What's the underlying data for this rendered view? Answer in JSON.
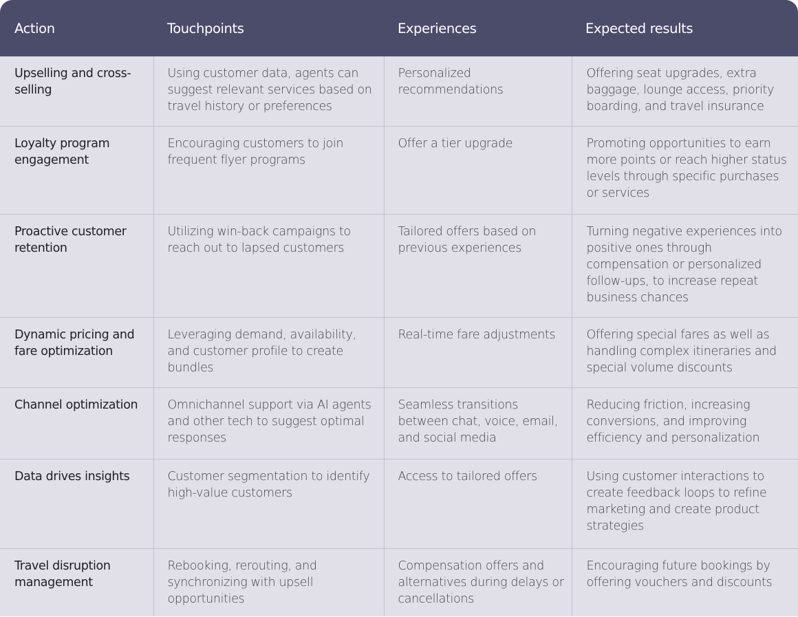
{
  "table": {
    "header_color": "#4b4c6a",
    "body_color": "#e1dfe8",
    "headers": [
      "Action",
      "Touchpoints",
      "Experiences",
      "Expected results"
    ],
    "rows": [
      {
        "action": "Upselling and cross-selling",
        "touchpoints": "Using customer data, agents can suggest relevant services based on travel history or preferences",
        "experiences": "Personalized recommendations",
        "results": "Offering seat upgrades, extra baggage, lounge access, priority boarding, and travel insurance"
      },
      {
        "action": "Loyalty program engagement",
        "touchpoints": "Encouraging customers to join frequent flyer programs",
        "experiences": "Offer a tier upgrade",
        "results": "Promoting opportunities to earn more points or reach higher status levels through specific purchases or services"
      },
      {
        "action": "Proactive customer retention",
        "touchpoints": "Utilizing win-back campaigns to reach out to lapsed customers",
        "experiences": "Tailored offers based on previous experiences",
        "results": "Turning negative experiences into positive ones through compensation or personalized follow-ups, to increase repeat business chances"
      },
      {
        "action": "Dynamic pricing and fare optimization",
        "touchpoints": "Leveraging demand, availability, and customer profile to create bundles",
        "experiences": "Real-time fare adjustments",
        "results": "Offering special fares as well as handling complex itineraries and special volume discounts"
      },
      {
        "action": "Channel optimization",
        "touchpoints": "Omnichannel support via AI agents and other tech to suggest optimal responses",
        "experiences": "Seamless transitions between chat, voice, email, and social media",
        "results": "Reducing friction, increasing conversions, and improving efficiency and personalization"
      },
      {
        "action": "Data drives insights",
        "touchpoints": "Customer segmentation to identify high-value customers",
        "experiences": "Access to tailored offers",
        "results": "Using customer interactions to create feedback loops to refine marketing and create product strategies"
      },
      {
        "action": "Travel disruption management",
        "touchpoints": "Rebooking, rerouting, and synchronizing with upsell opportunities",
        "experiences": "Compensation offers and alternatives during delays or cancellations",
        "results": "Encouraging future bookings by offering vouchers and discounts"
      }
    ]
  }
}
